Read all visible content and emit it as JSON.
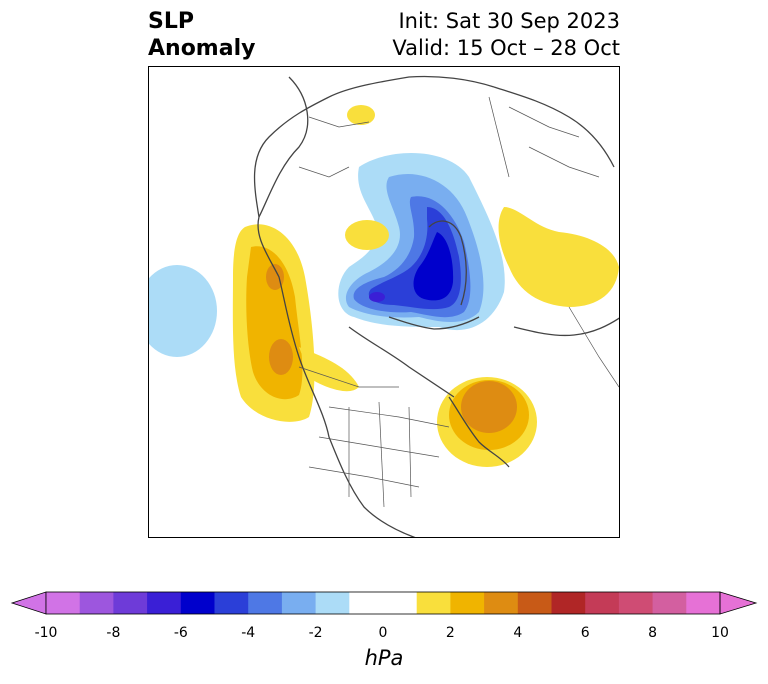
{
  "title": {
    "left_line1": "SLP",
    "left_line2": "Anomaly",
    "right_line1": "Init: Sat 30 Sep 2023",
    "right_line2": "Valid: 15 Oct – 28 Oct"
  },
  "colorbar": {
    "label": "hPa",
    "ticks": [
      "-10",
      "-8",
      "-6",
      "-4",
      "-2",
      "0",
      "2",
      "4",
      "6",
      "8",
      "10"
    ],
    "colors": [
      "#d173e6",
      "#9d56de",
      "#6e3bd8",
      "#3a1fd6",
      "#0000cc",
      "#2b3fd8",
      "#4e78e5",
      "#79aef0",
      "#acdcf7",
      "#ffffff",
      "#ffffff",
      "#f9df3c",
      "#f0b400",
      "#de8c12",
      "#c85a17",
      "#b02626",
      "#c43b57",
      "#cf4c74",
      "#d35fa0",
      "#e671d6"
    ]
  },
  "map": {
    "projection": "north-polar-stereographic",
    "anomalies": [
      {
        "name": "pacific-negative",
        "value": -1
      },
      {
        "name": "west-coast-positive",
        "value": 3
      },
      {
        "name": "arctic-negative",
        "value": -6
      },
      {
        "name": "atlantic-positive",
        "value": 4
      },
      {
        "name": "siberia-positive",
        "value": 2
      },
      {
        "name": "scandinavia-positive",
        "value": 1
      },
      {
        "name": "greenland-sea-positive",
        "value": 1
      }
    ]
  }
}
